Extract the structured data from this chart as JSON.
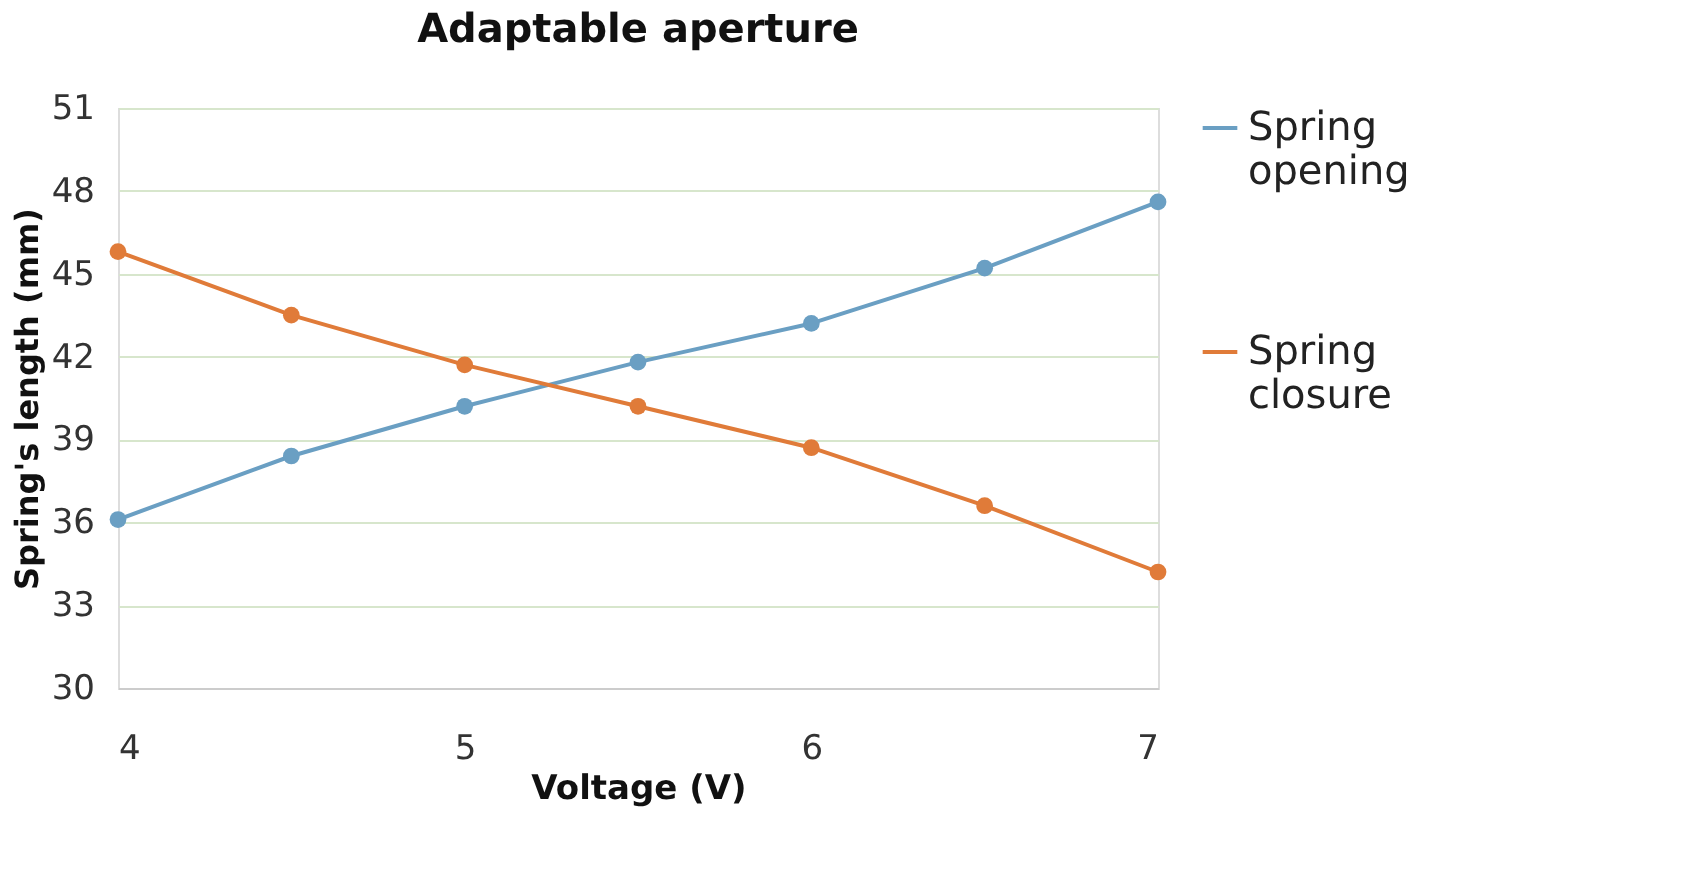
{
  "chart_data": {
    "type": "line",
    "title": "Adaptable aperture",
    "xlabel": "Voltage (V)",
    "ylabel": "Spring's length (mm)",
    "x": [
      4,
      4.5,
      5,
      5.5,
      6,
      6.5,
      7
    ],
    "series": [
      {
        "name": "Spring opening",
        "color": "#6a9fc3",
        "values": [
          36.1,
          38.4,
          40.2,
          41.8,
          43.2,
          45.2,
          47.6
        ]
      },
      {
        "name": "Spring closure",
        "color": "#e07b39",
        "values": [
          45.8,
          43.5,
          41.7,
          40.2,
          38.7,
          36.6,
          34.2
        ]
      }
    ],
    "xlim": [
      4,
      7
    ],
    "xticks": [
      4,
      5,
      6,
      7
    ],
    "ylim": [
      30,
      51
    ],
    "yticks": [
      30,
      33,
      36,
      39,
      42,
      45,
      48,
      51
    ],
    "grid": "y",
    "legend": "right",
    "marker": "circle",
    "line_style": "solid"
  }
}
